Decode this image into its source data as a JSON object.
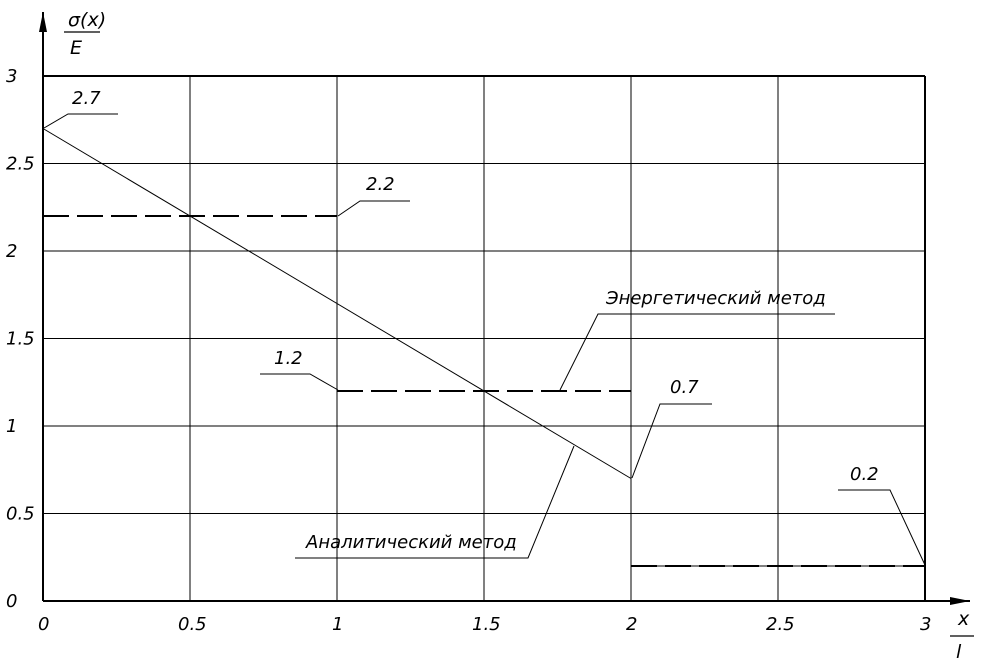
{
  "chart_data": {
    "type": "line",
    "y_axis_label": {
      "numerator": "σ(x)",
      "denominator": "E"
    },
    "x_axis_label": {
      "numerator": "x",
      "denominator": "l"
    },
    "xlim": [
      0,
      3
    ],
    "ylim": [
      0,
      3
    ],
    "x_ticks": [
      "0",
      "0.5",
      "1",
      "1.5",
      "2",
      "2.5",
      "3"
    ],
    "y_ticks": [
      "0",
      "0.5",
      "1",
      "1.5",
      "2",
      "2.5",
      "3"
    ],
    "grid": true,
    "series": [
      {
        "name": "Аналитический метод",
        "style": "solid",
        "segments": [
          {
            "x": [
              0,
              2
            ],
            "y": [
              2.7,
              0.7
            ]
          },
          {
            "x": [
              2,
              3
            ],
            "y": [
              0.2,
              0.2
            ]
          }
        ]
      },
      {
        "name": "Энергетический метод",
        "style": "dashed",
        "segments": [
          {
            "x": [
              0,
              1
            ],
            "y": [
              2.2,
              2.2
            ]
          },
          {
            "x": [
              1,
              2
            ],
            "y": [
              1.2,
              1.2
            ]
          },
          {
            "x": [
              2,
              3
            ],
            "y": [
              0.2,
              0.2
            ]
          }
        ]
      }
    ],
    "value_labels": [
      "2.7",
      "2.2",
      "1.2",
      "0.7",
      "0.2"
    ]
  }
}
